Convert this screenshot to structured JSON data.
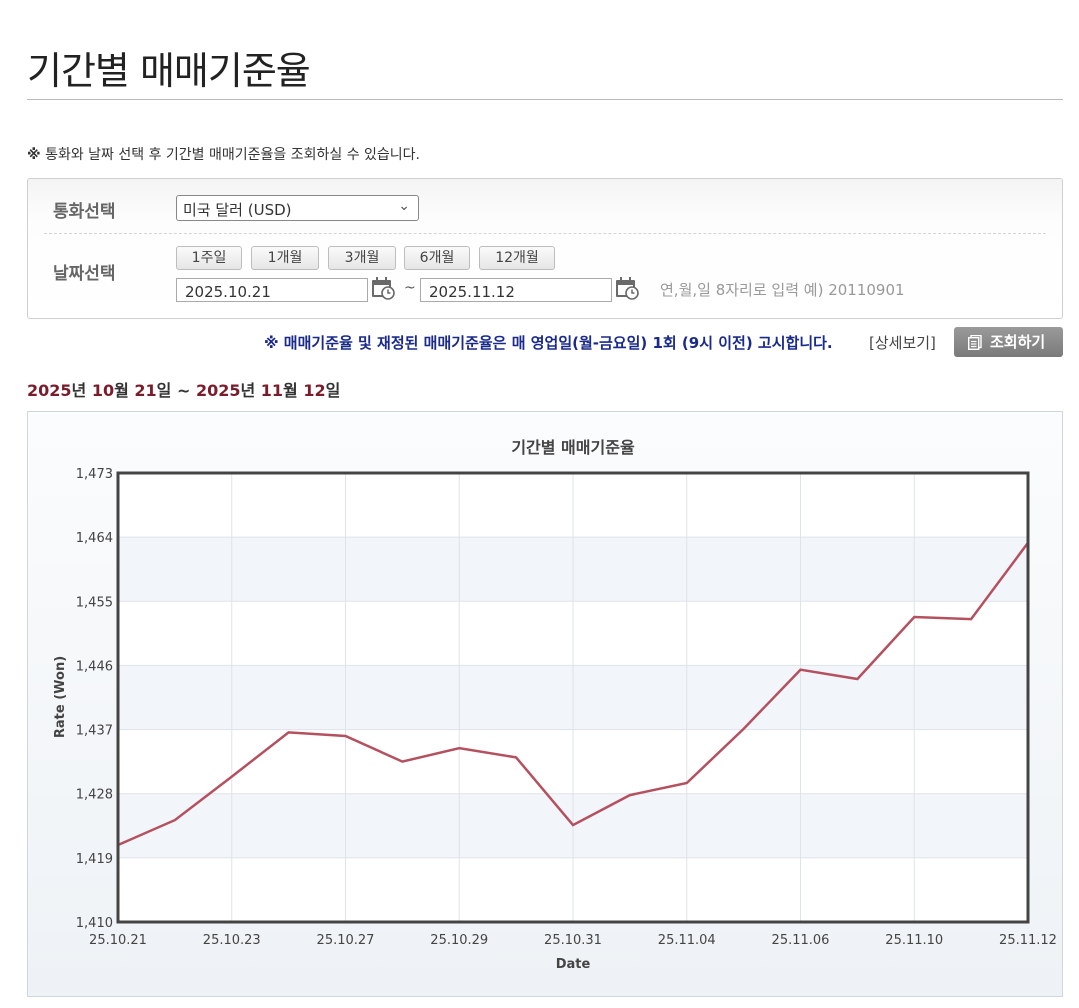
{
  "page": {
    "title": "기간별 매매기준율",
    "notice": "통화와 날짜 선택 후 기간별 매매기준율을 조회하실 수 있습니다.",
    "notice_mark": "※"
  },
  "form": {
    "currency_label": "통화선택",
    "currency_value": "미국 달러 (USD)",
    "date_label": "날짜선택",
    "period_buttons": [
      "1주일",
      "1개월",
      "3개월",
      "6개월",
      "12개월"
    ],
    "start_date": "2025.10.21",
    "end_date": "2025.11.12",
    "tilde": "~",
    "date_hint": "연,월,일 8자리로 입력 예) 20110901"
  },
  "notice2": "※ 매매기준율 및 재정된 매매기준율은 매 영업일(월-금요일) 1회 (9시 이전) 고시합니다.",
  "detail_link": "[상세보기]",
  "search_button": "조회하기",
  "range": {
    "y1": "2025",
    "u_year1": "년 ",
    "m1": "10",
    "u_month1": "월 ",
    "d1": "21",
    "u_day1": "일 ~ ",
    "y2": "2025",
    "u_year2": "년 ",
    "m2": "11",
    "u_month2": "월 ",
    "d2": "12",
    "u_day2": "일"
  },
  "colors": {
    "line": "#b5505f",
    "range_highlight": "#7a1c2a",
    "notice2": "#1a2a8a"
  },
  "chart_data": {
    "type": "line",
    "title": "기간별 매매기준율",
    "xlabel": "Date",
    "ylabel": "Rate (Won)",
    "ylim": [
      1410,
      1473
    ],
    "yticks": [
      "1,410",
      "1,419",
      "1,428",
      "1,437",
      "1,446",
      "1,455",
      "1,464",
      "1,473"
    ],
    "xticks": [
      "25.10.21",
      "25.10.23",
      "25.10.27",
      "25.10.29",
      "25.10.31",
      "25.11.04",
      "25.11.06",
      "25.11.10",
      "25.11.12"
    ],
    "x": [
      "25.10.21",
      "25.10.22",
      "25.10.23",
      "25.10.24",
      "25.10.27",
      "25.10.28",
      "25.10.29",
      "25.10.30",
      "25.10.31",
      "25.11.03",
      "25.11.04",
      "25.11.05",
      "25.11.06",
      "25.11.07",
      "25.11.10",
      "25.11.11",
      "25.11.12"
    ],
    "values": [
      1420.8,
      1424.3,
      1430.4,
      1436.6,
      1436.1,
      1432.5,
      1434.4,
      1433.1,
      1423.6,
      1427.8,
      1429.5,
      1437.1,
      1445.4,
      1444.1,
      1452.8,
      1452.5,
      1463.2
    ],
    "grid": true
  }
}
